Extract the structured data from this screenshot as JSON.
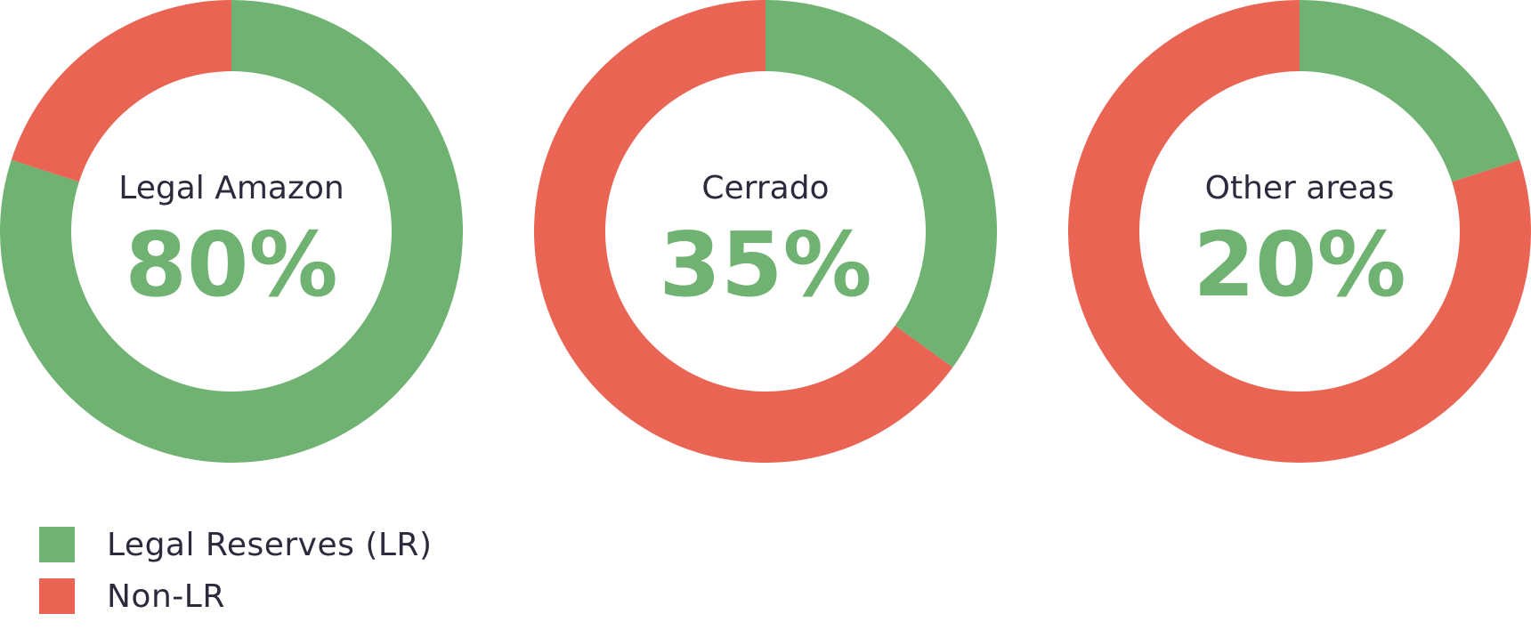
{
  "chart_data": [
    {
      "type": "pie",
      "title": "Legal Amazon",
      "value_label": "80%",
      "categories": [
        "Legal Reserves (LR)",
        "Non-LR"
      ],
      "values": [
        80,
        20
      ]
    },
    {
      "type": "pie",
      "title": "Cerrado",
      "value_label": "35%",
      "categories": [
        "Legal Reserves (LR)",
        "Non-LR"
      ],
      "values": [
        35,
        65
      ]
    },
    {
      "type": "pie",
      "title": "Other areas",
      "value_label": "20%",
      "categories": [
        "Legal Reserves (LR)",
        "Non-LR"
      ],
      "values": [
        20,
        80
      ]
    }
  ],
  "legend": {
    "items": [
      {
        "label": "Legal Reserves (LR)",
        "color": "#6fb271"
      },
      {
        "label": "Non-LR",
        "color": "#ea6453"
      }
    ]
  },
  "colors": {
    "lr": "#6fb271",
    "non_lr": "#ea6453",
    "title_text": "#2b2b3d",
    "percent_text": "#6fb271"
  }
}
